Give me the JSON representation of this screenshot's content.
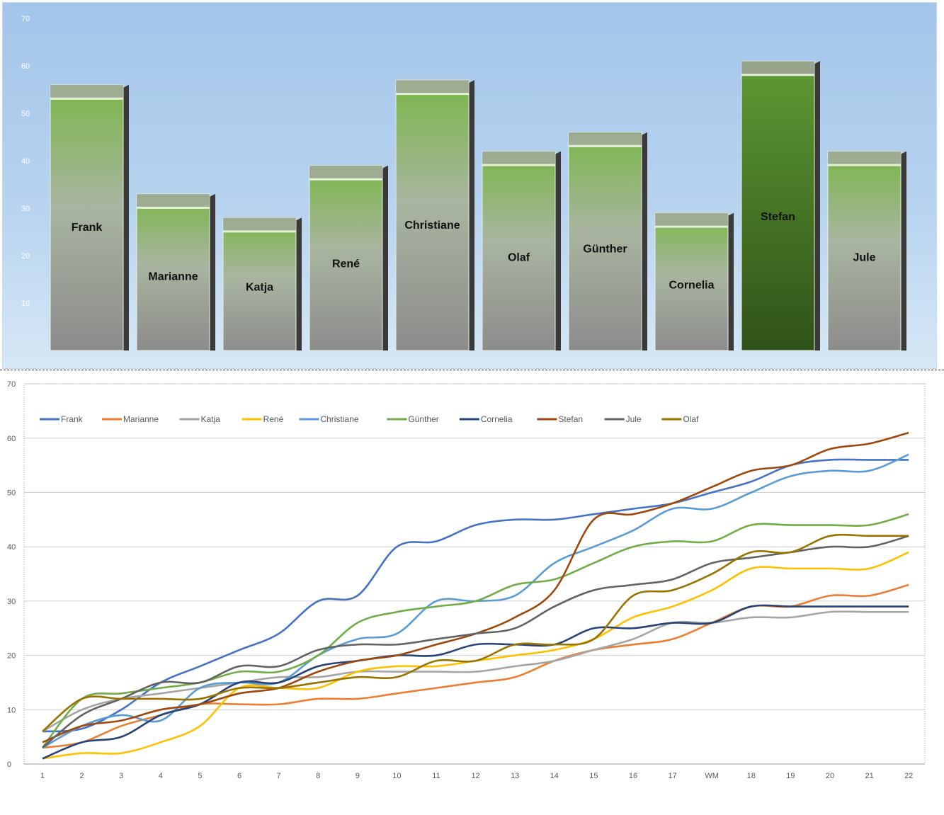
{
  "chart_data": [
    {
      "type": "bar",
      "categories": [
        "Frank",
        "Marianne",
        "Katja",
        "René",
        "Christiane",
        "Olaf",
        "Günther",
        "Cornelia",
        "Stefan",
        "Jule"
      ],
      "values": [
        56,
        33,
        28,
        39,
        57,
        42,
        46,
        29,
        61,
        42
      ],
      "yticks": [
        10,
        20,
        30,
        40,
        50,
        60,
        70
      ],
      "ylim": [
        0,
        70
      ],
      "colors": {
        "bar_top": "#7ab648",
        "bar_bottom": "#8c8c8c",
        "highlight_top": "#5e9a34",
        "highlight_bottom": "#2f5218",
        "cap": "#a8a8a8"
      },
      "highlight": "Stefan"
    },
    {
      "type": "line",
      "x": [
        "1",
        "2",
        "3",
        "4",
        "5",
        "6",
        "7",
        "8",
        "9",
        "10",
        "11",
        "12",
        "13",
        "14",
        "15",
        "16",
        "17",
        "WM",
        "18",
        "19",
        "20",
        "21",
        "22"
      ],
      "yticks": [
        0,
        10,
        20,
        30,
        40,
        50,
        60,
        70
      ],
      "ylim": [
        0,
        70
      ],
      "legend": "top-left",
      "grid": true,
      "series": [
        {
          "name": "Frank",
          "color": "#4472c4",
          "values": [
            6,
            6.5,
            10,
            15,
            18,
            21,
            24,
            30,
            31,
            40,
            41,
            44,
            45,
            45,
            46,
            47,
            48,
            50,
            52,
            55,
            56,
            56,
            56
          ]
        },
        {
          "name": "Marianne",
          "color": "#ed7d31",
          "values": [
            3,
            4,
            7,
            9,
            11,
            11,
            11,
            12,
            12,
            13,
            14,
            15,
            16,
            19,
            21,
            22,
            23,
            26,
            29,
            29,
            31,
            31,
            33
          ]
        },
        {
          "name": "Katja",
          "color": "#a5a5a5",
          "values": [
            6,
            10,
            12,
            13,
            14,
            15,
            16,
            16,
            17,
            17,
            17,
            17,
            18,
            19,
            21,
            23,
            26,
            26,
            27,
            27,
            28,
            28,
            28
          ]
        },
        {
          "name": "René",
          "color": "#ffc000",
          "values": [
            1,
            2,
            2,
            4,
            7,
            14,
            14,
            14,
            17,
            18,
            18,
            19,
            20,
            21,
            23,
            27,
            29,
            32,
            36,
            36,
            36,
            36,
            39
          ]
        },
        {
          "name": "Christiane",
          "color": "#5b9bd5",
          "values": [
            3,
            7,
            9,
            8,
            14,
            15,
            15,
            20,
            23,
            24,
            30,
            30,
            31,
            37,
            40,
            43,
            47,
            47,
            50,
            53,
            54,
            54,
            57
          ]
        },
        {
          "name": "Günther",
          "color": "#70ad47",
          "values": [
            3,
            12,
            13,
            14,
            15,
            17,
            17,
            20,
            26,
            28,
            29,
            30,
            33,
            34,
            37,
            40,
            41,
            41,
            44,
            44,
            44,
            44,
            46
          ]
        },
        {
          "name": "Cornelia",
          "color": "#264478",
          "values": [
            1,
            4,
            5,
            9,
            11,
            15,
            15,
            18,
            19,
            20,
            20,
            22,
            22,
            22,
            25,
            25,
            26,
            26,
            29,
            29,
            29,
            29,
            29
          ]
        },
        {
          "name": "Stefan",
          "color": "#9e480e",
          "values": [
            4,
            7,
            8,
            10,
            11,
            13,
            14,
            17,
            19,
            20,
            22,
            24,
            27,
            32,
            45,
            46,
            48,
            51,
            54,
            55,
            58,
            59,
            61
          ]
        },
        {
          "name": "Jule",
          "color": "#636363",
          "values": [
            3,
            9,
            12,
            15,
            15,
            18,
            18,
            21,
            22,
            22,
            23,
            24,
            25,
            29,
            32,
            33,
            34,
            37,
            38,
            39,
            40,
            40,
            42
          ]
        },
        {
          "name": "Olaf",
          "color": "#997300",
          "values": [
            6,
            12,
            12,
            12,
            12,
            14,
            14,
            15,
            16,
            16,
            19,
            19,
            22,
            22,
            23,
            31,
            32,
            35,
            39,
            39,
            42,
            42,
            42
          ]
        }
      ]
    }
  ]
}
